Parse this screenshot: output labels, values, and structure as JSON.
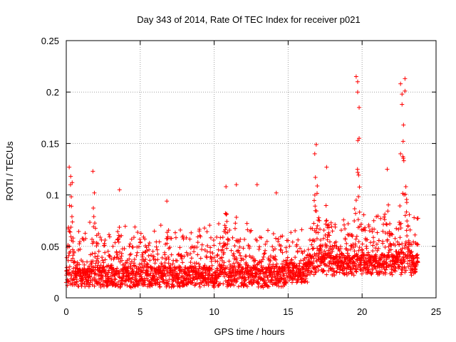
{
  "chart_data": {
    "type": "scatter",
    "title": "Day 343 of 2014, Rate Of TEC Index for receiver p021",
    "xlabel": "GPS time / hours",
    "ylabel": "ROTI / TECUs",
    "xlim": [
      0,
      25
    ],
    "ylim": [
      0,
      0.25
    ],
    "xticks": [
      0,
      5,
      10,
      15,
      20,
      25
    ],
    "xtick_labels": [
      "0",
      "5",
      "10",
      "15",
      "20",
      "25"
    ],
    "yticks": [
      0,
      0.05,
      0.1,
      0.15,
      0.2,
      0.25
    ],
    "ytick_labels": [
      "0",
      "0.05",
      "0.1",
      "0.15",
      "0.2",
      "0.25"
    ],
    "grid": true,
    "marker": "+",
    "color": "#ff0000",
    "series": [
      {
        "name": "ROTI",
        "x_range": [
          0,
          23.8
        ],
        "baseline": 0.02,
        "notable_points": [
          {
            "x": 0.2,
            "y": 0.127
          },
          {
            "x": 0.3,
            "y": 0.118
          },
          {
            "x": 0.4,
            "y": 0.112
          },
          {
            "x": 1.8,
            "y": 0.123
          },
          {
            "x": 1.9,
            "y": 0.102
          },
          {
            "x": 3.6,
            "y": 0.105
          },
          {
            "x": 6.8,
            "y": 0.094
          },
          {
            "x": 10.8,
            "y": 0.108
          },
          {
            "x": 11.5,
            "y": 0.11
          },
          {
            "x": 12.9,
            "y": 0.11
          },
          {
            "x": 14.2,
            "y": 0.102
          },
          {
            "x": 16.8,
            "y": 0.14
          },
          {
            "x": 16.9,
            "y": 0.149
          },
          {
            "x": 17.6,
            "y": 0.127
          },
          {
            "x": 19.6,
            "y": 0.215
          },
          {
            "x": 19.7,
            "y": 0.21
          },
          {
            "x": 19.7,
            "y": 0.2
          },
          {
            "x": 19.8,
            "y": 0.185
          },
          {
            "x": 19.8,
            "y": 0.155
          },
          {
            "x": 21.7,
            "y": 0.125
          },
          {
            "x": 22.6,
            "y": 0.208
          },
          {
            "x": 22.7,
            "y": 0.198
          },
          {
            "x": 22.7,
            "y": 0.188
          },
          {
            "x": 22.8,
            "y": 0.168
          },
          {
            "x": 22.9,
            "y": 0.213
          },
          {
            "x": 22.9,
            "y": 0.201
          },
          {
            "x": 22.6,
            "y": 0.14
          }
        ],
        "bursts": [
          {
            "x": 0.3,
            "peak": 0.12,
            "width": 0.3
          },
          {
            "x": 1.9,
            "peak": 0.11,
            "width": 0.3
          },
          {
            "x": 3.6,
            "peak": 0.1,
            "width": 0.3
          },
          {
            "x": 6.8,
            "peak": 0.07,
            "width": 0.4
          },
          {
            "x": 10.8,
            "peak": 0.09,
            "width": 0.4
          },
          {
            "x": 11.5,
            "peak": 0.09,
            "width": 0.3
          },
          {
            "x": 16.9,
            "peak": 0.13,
            "width": 0.5
          },
          {
            "x": 17.6,
            "peak": 0.1,
            "width": 0.4
          },
          {
            "x": 19.7,
            "peak": 0.16,
            "width": 0.4
          },
          {
            "x": 21.7,
            "peak": 0.11,
            "width": 0.5
          },
          {
            "x": 22.8,
            "peak": 0.16,
            "width": 0.5
          }
        ]
      }
    ]
  }
}
